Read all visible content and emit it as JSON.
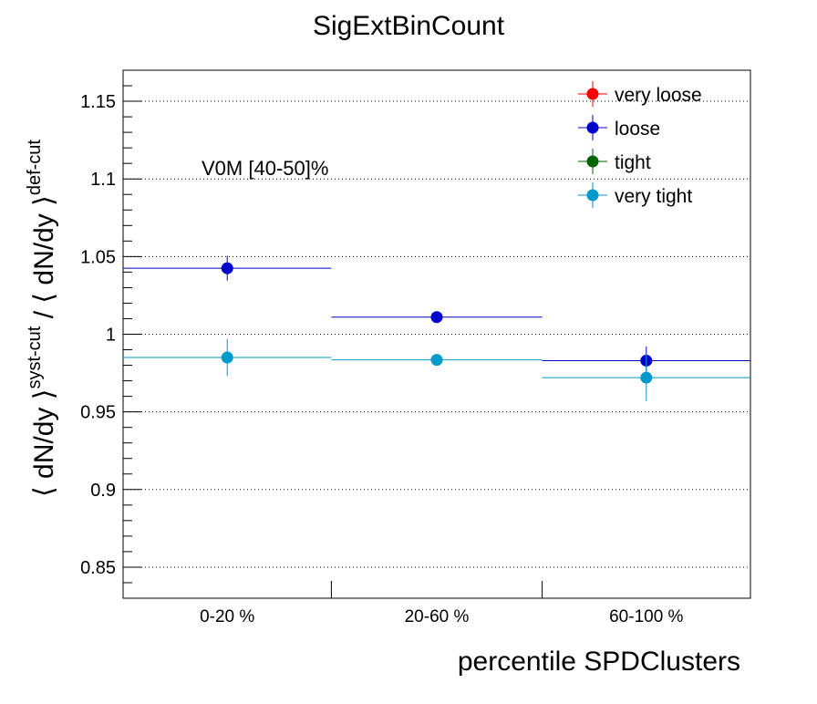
{
  "chart_data": {
    "type": "scatter",
    "title": "SigExtBinCount",
    "xlabel": "percentile SPDClusters",
    "ylabel": {
      "open1": "⟨ dN/dy ⟩",
      "sup1": "syst-cut",
      "divider": " / ",
      "open2": "⟨ dN/dy ⟩",
      "sup2": "def-cut"
    },
    "annotation": "V0M [40-50]%",
    "categories": [
      "0-20 %",
      "20-60 %",
      "60-100 %"
    ],
    "ylim": [
      0.83,
      1.17
    ],
    "yticks": [
      0.85,
      0.9,
      0.95,
      1,
      1.05,
      1.1,
      1.15
    ],
    "ytick_labels": [
      "0.85",
      "0.9",
      "0.95",
      "1",
      "1.05",
      "1.1",
      "1.15"
    ],
    "grid_y": true,
    "legend_position": "top-right",
    "series": [
      {
        "name": "very loose",
        "color": "#ff0000",
        "values": [],
        "errors": []
      },
      {
        "name": "loose",
        "color": "#0000cc",
        "values": [
          1.0425,
          1.011,
          0.983
        ],
        "errors": [
          0.008,
          0.002,
          0.009
        ]
      },
      {
        "name": "tight",
        "color": "#006600",
        "values": [],
        "errors": []
      },
      {
        "name": "very tight",
        "color": "#0099cc",
        "values": [
          0.985,
          0.9835,
          0.972
        ],
        "errors": [
          0.012,
          0.002,
          0.015
        ]
      }
    ]
  }
}
